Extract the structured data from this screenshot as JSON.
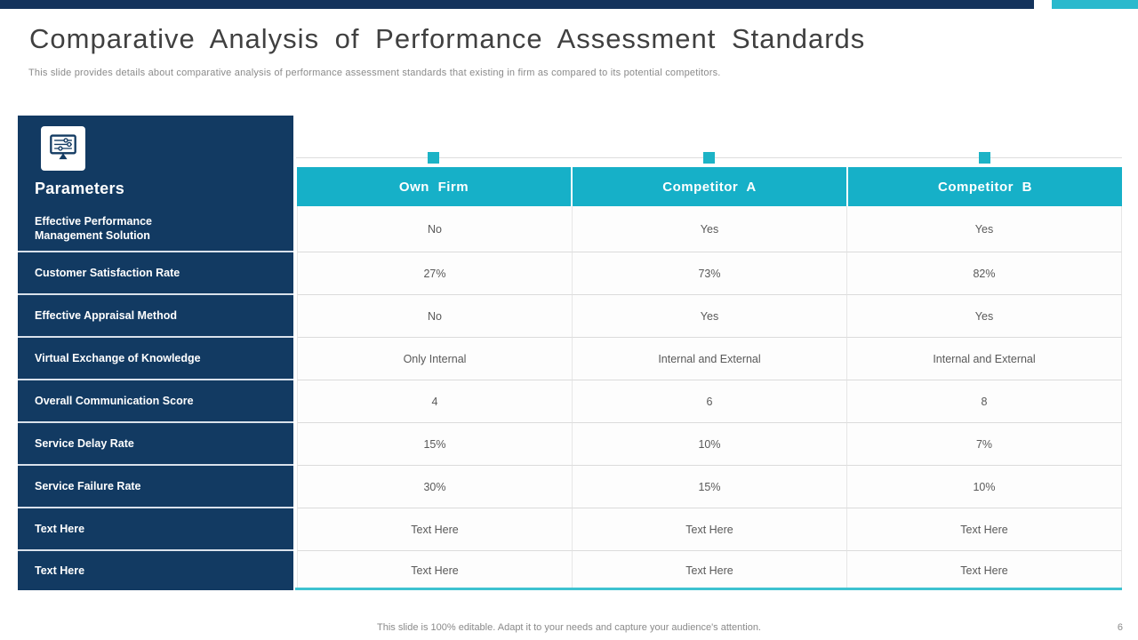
{
  "slide": {
    "title": "Comparative Analysis of Performance Assessment Standards",
    "subtitle": "This slide provides details about comparative analysis of performance assessment standards that existing in firm as compared to its potential competitors.",
    "footer_note": "This slide is 100% editable. Adapt it to your needs and capture your audience's attention.",
    "page_number": "6"
  },
  "colors": {
    "navy": "#123A62",
    "top_bar_navy": "#14335C",
    "header_cyan": "#16B0C8",
    "top_bar_cyan": "#2AB9CD",
    "bottom_line_cyan": "#3DC2D0",
    "cell_text_gray": "#595959",
    "title_gray": "#404040"
  },
  "table": {
    "icon": "monitor-sliders-icon",
    "parameters_label": "Parameters",
    "columns": [
      "Own Firm",
      "Competitor A",
      "Competitor B"
    ],
    "rows": [
      {
        "label": "Effective Performance Management Solution",
        "values": [
          "No",
          "Yes",
          "Yes"
        ]
      },
      {
        "label": "Customer Satisfaction Rate",
        "values": [
          "27%",
          "73%",
          "82%"
        ]
      },
      {
        "label": "Effective Appraisal Method",
        "values": [
          "No",
          "Yes",
          "Yes"
        ]
      },
      {
        "label": "Virtual Exchange of Knowledge",
        "values": [
          "Only Internal",
          "Internal and External",
          "Internal and External"
        ]
      },
      {
        "label": "Overall Communication Score",
        "values": [
          "4",
          "6",
          "8"
        ]
      },
      {
        "label": "Service Delay Rate",
        "values": [
          "15%",
          "10%",
          "7%"
        ]
      },
      {
        "label": "Service Failure Rate",
        "values": [
          "30%",
          "15%",
          "10%"
        ]
      },
      {
        "label": "Text Here",
        "values": [
          "Text Here",
          "Text Here",
          "Text Here"
        ]
      },
      {
        "label": "Text Here",
        "values": [
          "Text Here",
          "Text Here",
          "Text Here"
        ]
      }
    ]
  }
}
